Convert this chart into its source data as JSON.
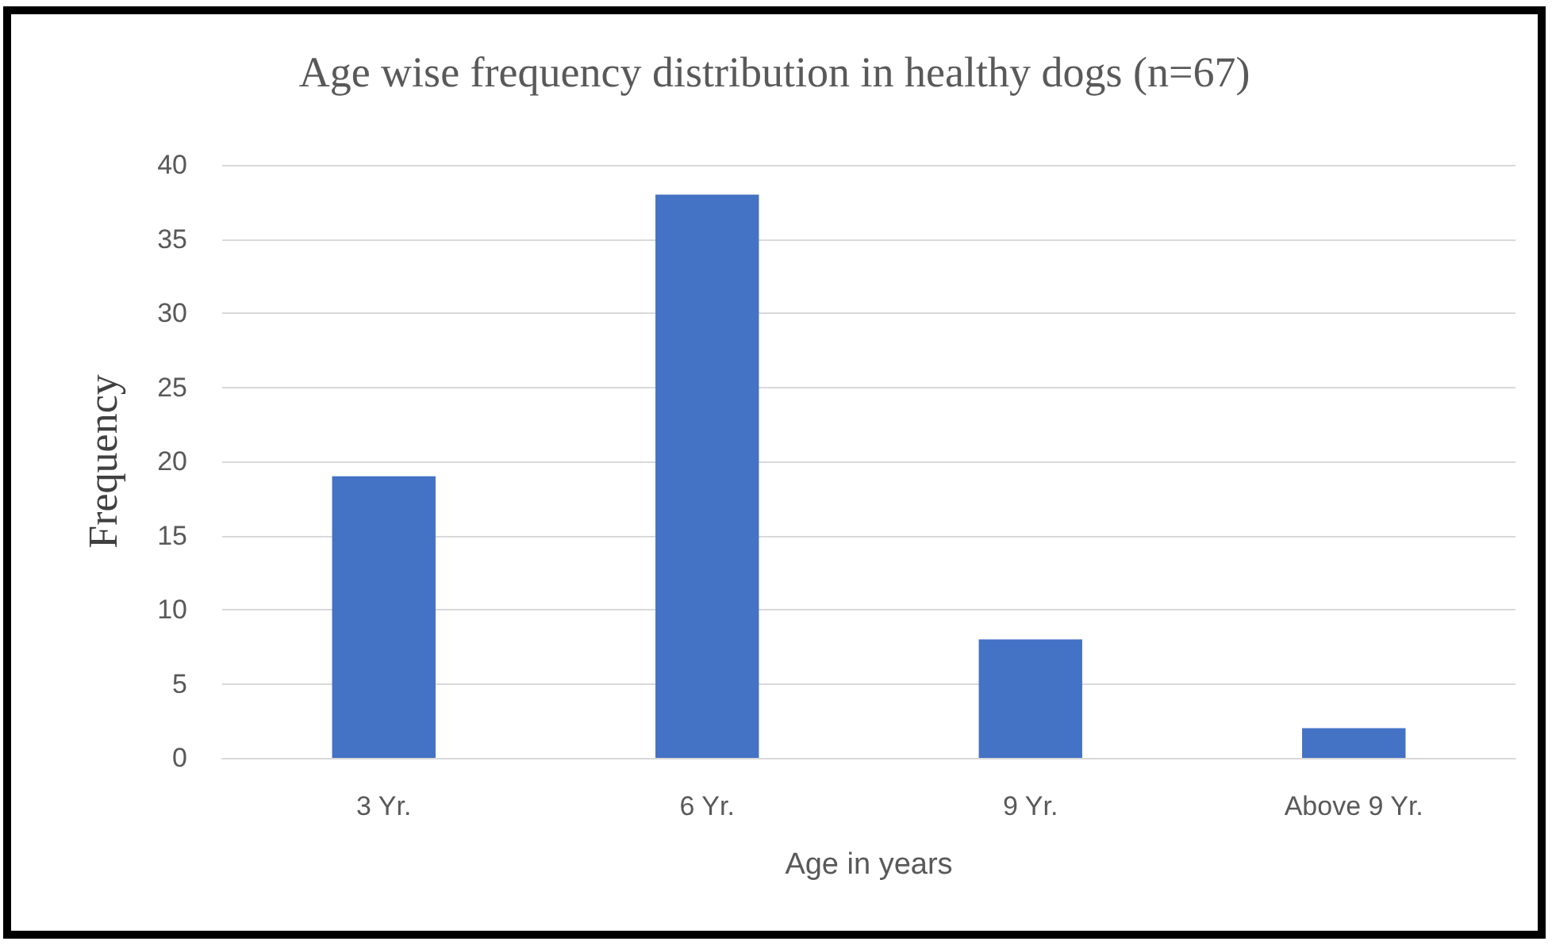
{
  "chart_data": {
    "type": "bar",
    "title": "Age wise frequency distribution in healthy dogs (n=67)",
    "xlabel": "Age in years",
    "ylabel": "Frequency",
    "categories": [
      "3 Yr.",
      "6 Yr.",
      "9 Yr.",
      "Above 9 Yr."
    ],
    "series": [
      {
        "color": "#4472c4",
        "values": [
          19,
          38,
          8,
          2
        ]
      }
    ],
    "ylim": [
      0,
      40
    ],
    "yticks": [
      0,
      5,
      10,
      15,
      20,
      25,
      30,
      35,
      40
    ],
    "grid": "y"
  }
}
